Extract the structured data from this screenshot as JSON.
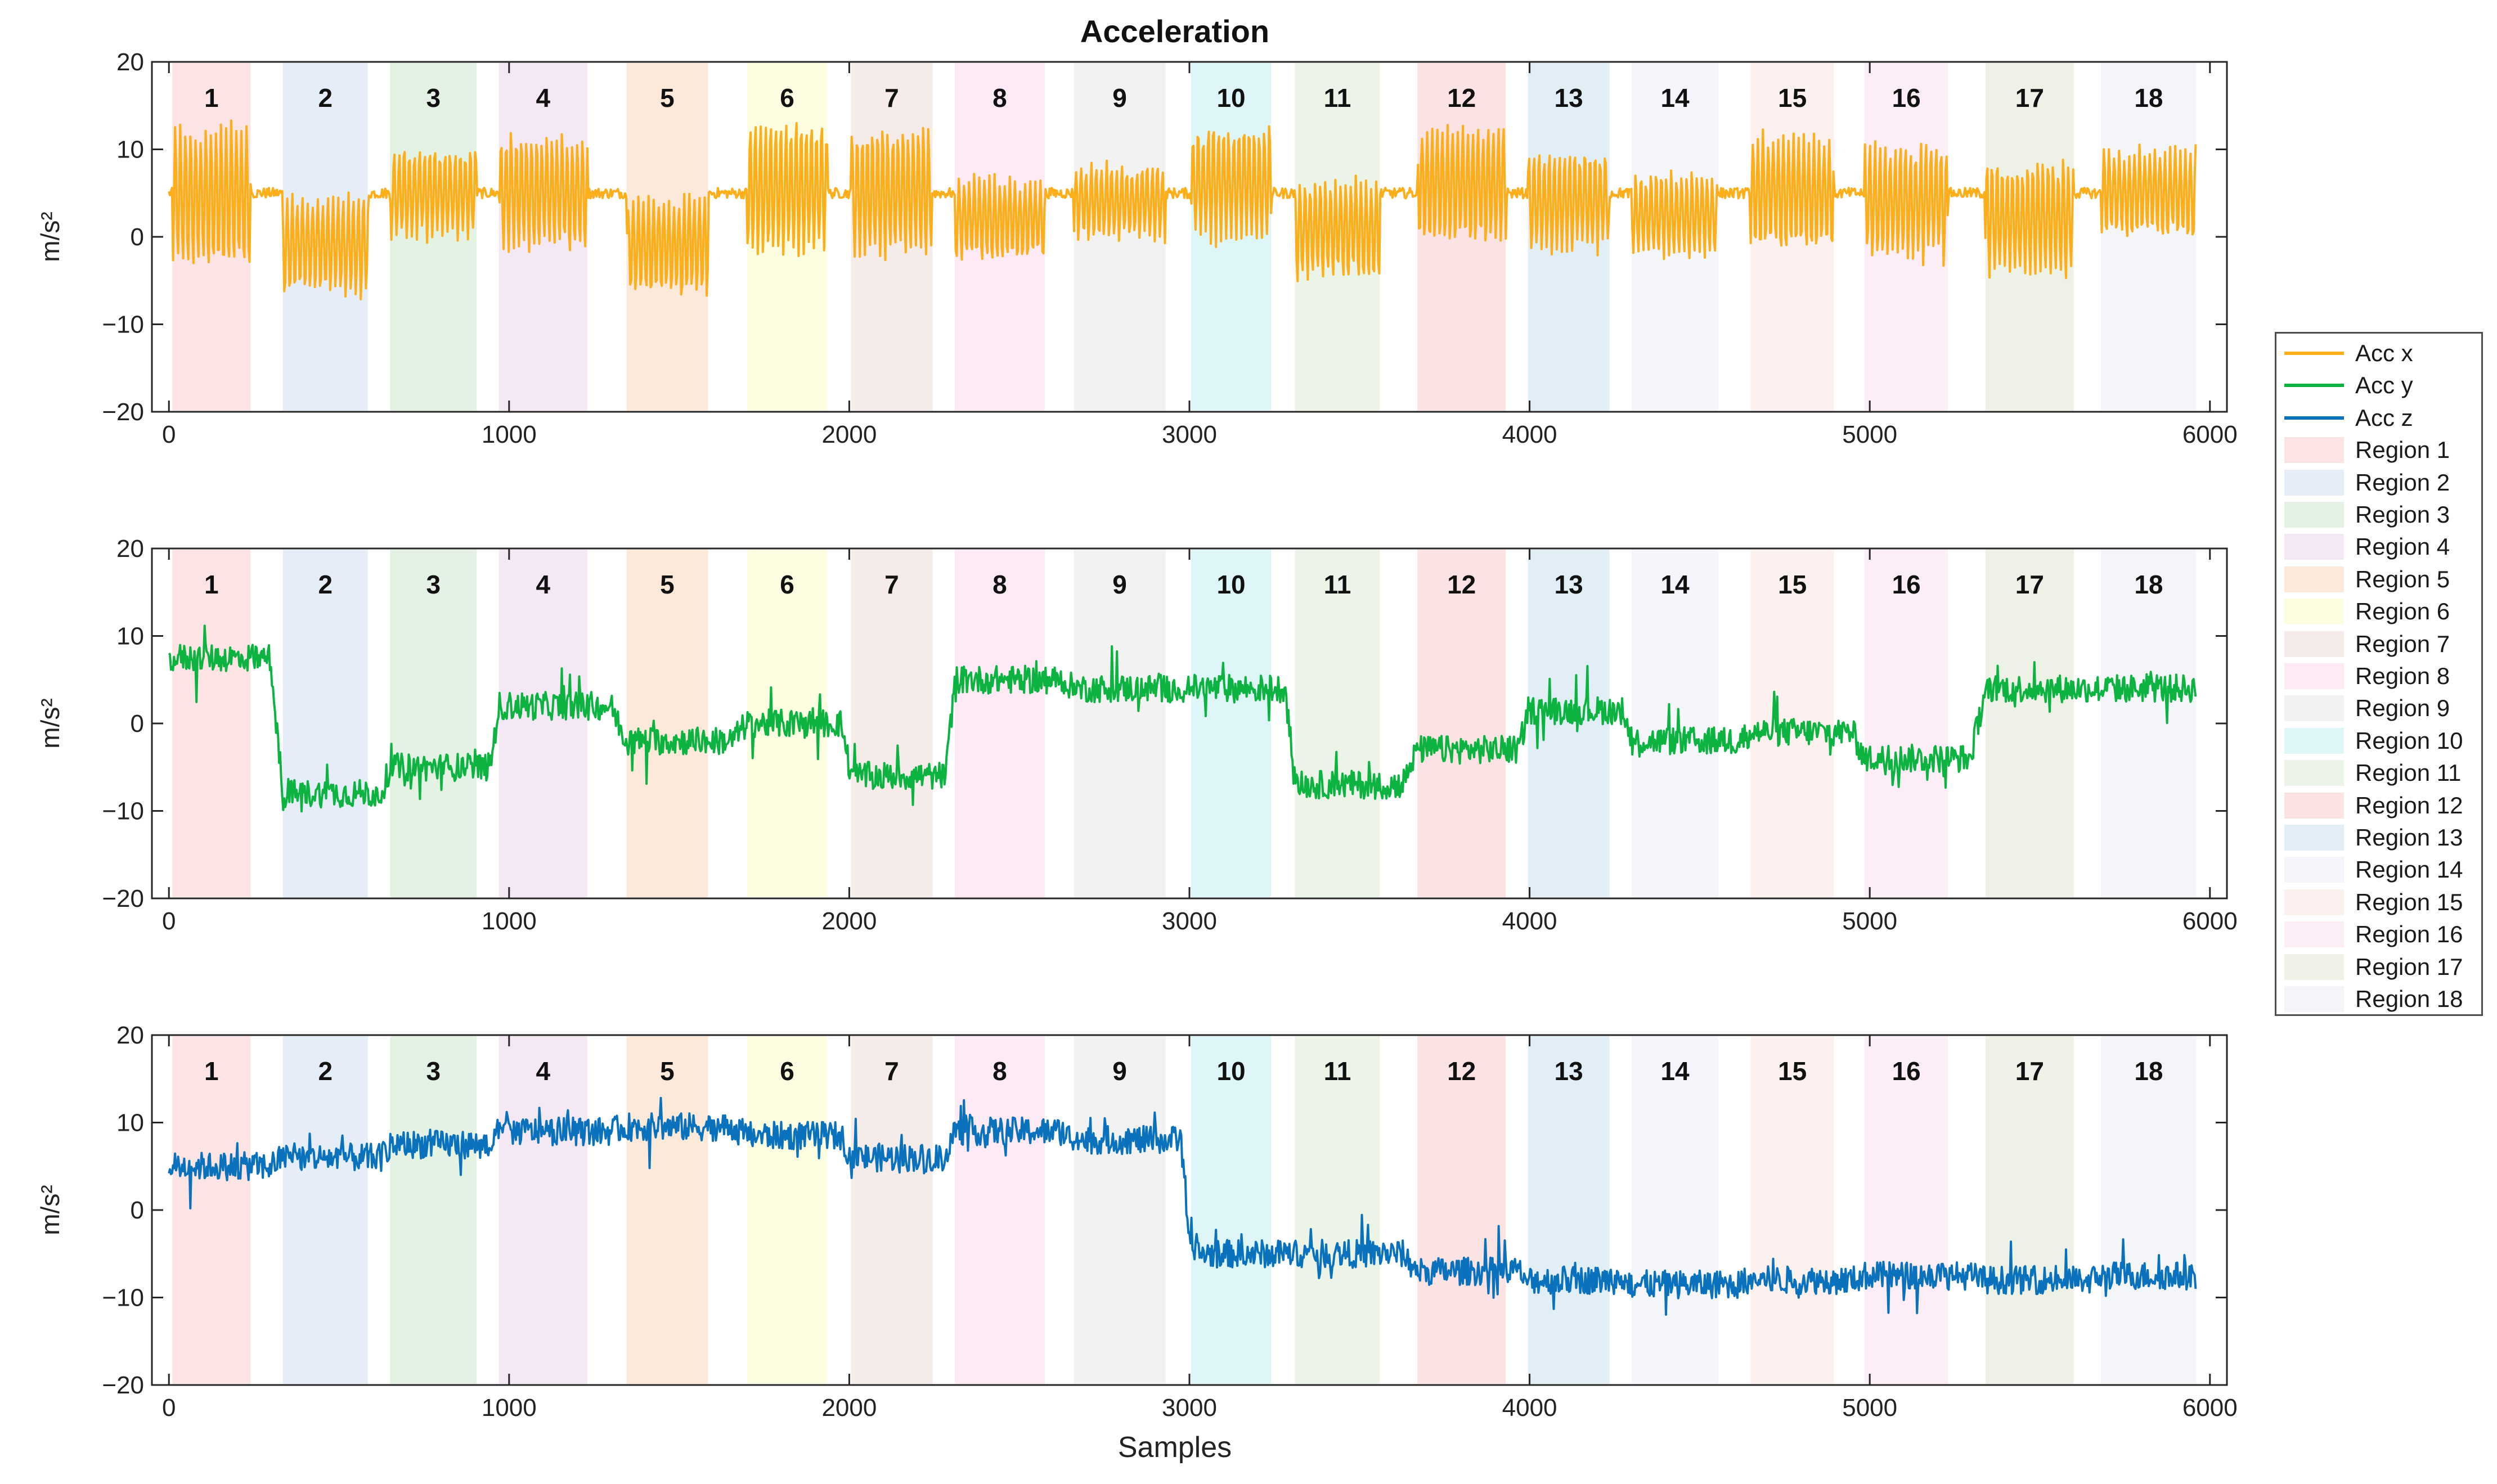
{
  "chart_data": {
    "type": "line",
    "title": "Acceleration",
    "xlabel": "Samples",
    "xlim": [
      -50,
      6050
    ],
    "xticks": [
      0,
      1000,
      2000,
      3000,
      4000,
      5000,
      6000
    ],
    "yticks": [
      -20,
      -10,
      0,
      10,
      20
    ],
    "regions": [
      {
        "label": "1",
        "start": 10,
        "end": 240,
        "color": "#fde4e4"
      },
      {
        "label": "2",
        "start": 335,
        "end": 585,
        "color": "#e5eef8"
      },
      {
        "label": "3",
        "start": 650,
        "end": 905,
        "color": "#e4f2e4"
      },
      {
        "label": "4",
        "start": 970,
        "end": 1230,
        "color": "#f5e8f5"
      },
      {
        "label": "5",
        "start": 1345,
        "end": 1585,
        "color": "#fde9da"
      },
      {
        "label": "6",
        "start": 1700,
        "end": 1935,
        "color": "#fdfde2"
      },
      {
        "label": "7",
        "start": 2005,
        "end": 2245,
        "color": "#f5ebe8"
      },
      {
        "label": "8",
        "start": 2310,
        "end": 2575,
        "color": "#fdeaf4"
      },
      {
        "label": "9",
        "start": 2660,
        "end": 2930,
        "color": "#f2f2f2"
      },
      {
        "label": "10",
        "start": 3005,
        "end": 3240,
        "color": "#def6f8"
      },
      {
        "label": "11",
        "start": 3310,
        "end": 3560,
        "color": "#ebf4e6"
      },
      {
        "label": "12",
        "start": 3670,
        "end": 3930,
        "color": "#fce3e3"
      },
      {
        "label": "13",
        "start": 3995,
        "end": 4235,
        "color": "#e1eef6"
      },
      {
        "label": "14",
        "start": 4300,
        "end": 4555,
        "color": "#f4f6fb"
      },
      {
        "label": "15",
        "start": 4650,
        "end": 4895,
        "color": "#fdf1ef"
      },
      {
        "label": "16",
        "start": 4985,
        "end": 5230,
        "color": "#fcedf6"
      },
      {
        "label": "17",
        "start": 5340,
        "end": 5600,
        "color": "#eef1e5"
      },
      {
        "label": "18",
        "start": 5680,
        "end": 5960,
        "color": "#f4f5f8"
      }
    ],
    "panels": [
      {
        "series": "Acc x",
        "ylabel": "m/s²",
        "ylim": [
          -20,
          20
        ],
        "color": "#fdae1b",
        "centers": [
          4.5,
          -1,
          5,
          5,
          -1,
          5.5,
          5,
          2,
          4,
          6,
          1,
          6,
          4,
          2.5,
          5,
          4,
          2,
          5
        ],
        "amps": [
          8.5,
          6,
          5.5,
          7,
          6,
          8,
          8,
          5,
          4.5,
          7,
          6,
          7,
          6,
          5,
          7,
          7,
          7,
          5.5
        ],
        "noise": 0.6,
        "osc": true,
        "gapLevel": 5
      },
      {
        "series": "Acc y",
        "ylabel": "m/s²",
        "ylim": [
          -20,
          20
        ],
        "color": "#0cb340",
        "centers": [
          7.5,
          -8,
          -5,
          2,
          -2,
          0,
          -6,
          5,
          4,
          4,
          -7,
          -3,
          1.5,
          -2,
          -1,
          -4,
          4,
          4
        ],
        "amps": [
          0,
          0,
          0,
          0,
          0,
          0,
          0,
          0,
          0,
          0,
          0,
          0,
          0,
          0,
          0,
          0,
          0,
          0
        ],
        "noise": 1.6,
        "osc": false
      },
      {
        "series": "Acc z",
        "ylabel": "m/s²",
        "ylim": [
          -20,
          20
        ],
        "color": "#0a72bd",
        "centers": [
          5,
          6,
          7.5,
          9,
          9.5,
          8.5,
          6,
          9,
          8,
          -5,
          -5,
          -7,
          -8,
          -8.5,
          -8,
          -7.5,
          -8,
          -7.5
        ],
        "amps": [
          0,
          0,
          0,
          0,
          0,
          0,
          0,
          0,
          0,
          0,
          0,
          0,
          0,
          0,
          0,
          0,
          0,
          0
        ],
        "noise": 1.6,
        "osc": false
      }
    ]
  },
  "legend": {
    "items": [
      {
        "label": "Acc x",
        "kind": "line",
        "color": "#fdae1b"
      },
      {
        "label": "Acc y",
        "kind": "line",
        "color": "#0cb340"
      },
      {
        "label": "Acc z",
        "kind": "line",
        "color": "#0a72bd"
      },
      {
        "label": "Region 1",
        "kind": "patch",
        "color": "#fde4e4"
      },
      {
        "label": "Region 2",
        "kind": "patch",
        "color": "#e5eef8"
      },
      {
        "label": "Region 3",
        "kind": "patch",
        "color": "#e4f2e4"
      },
      {
        "label": "Region 4",
        "kind": "patch",
        "color": "#f5e8f5"
      },
      {
        "label": "Region 5",
        "kind": "patch",
        "color": "#fde9da"
      },
      {
        "label": "Region 6",
        "kind": "patch",
        "color": "#fdfde2"
      },
      {
        "label": "Region 7",
        "kind": "patch",
        "color": "#f5ebe8"
      },
      {
        "label": "Region 8",
        "kind": "patch",
        "color": "#fdeaf4"
      },
      {
        "label": "Region 9",
        "kind": "patch",
        "color": "#f2f2f2"
      },
      {
        "label": "Region 10",
        "kind": "patch",
        "color": "#def6f8"
      },
      {
        "label": "Region 11",
        "kind": "patch",
        "color": "#ebf4e6"
      },
      {
        "label": "Region 12",
        "kind": "patch",
        "color": "#fce3e3"
      },
      {
        "label": "Region 13",
        "kind": "patch",
        "color": "#e1eef6"
      },
      {
        "label": "Region 14",
        "kind": "patch",
        "color": "#f4f6fb"
      },
      {
        "label": "Region 15",
        "kind": "patch",
        "color": "#fdf1ef"
      },
      {
        "label": "Region 16",
        "kind": "patch",
        "color": "#fcedf6"
      },
      {
        "label": "Region 17",
        "kind": "patch",
        "color": "#eef1e5"
      },
      {
        "label": "Region 18",
        "kind": "patch",
        "color": "#f4f5f8"
      }
    ]
  }
}
